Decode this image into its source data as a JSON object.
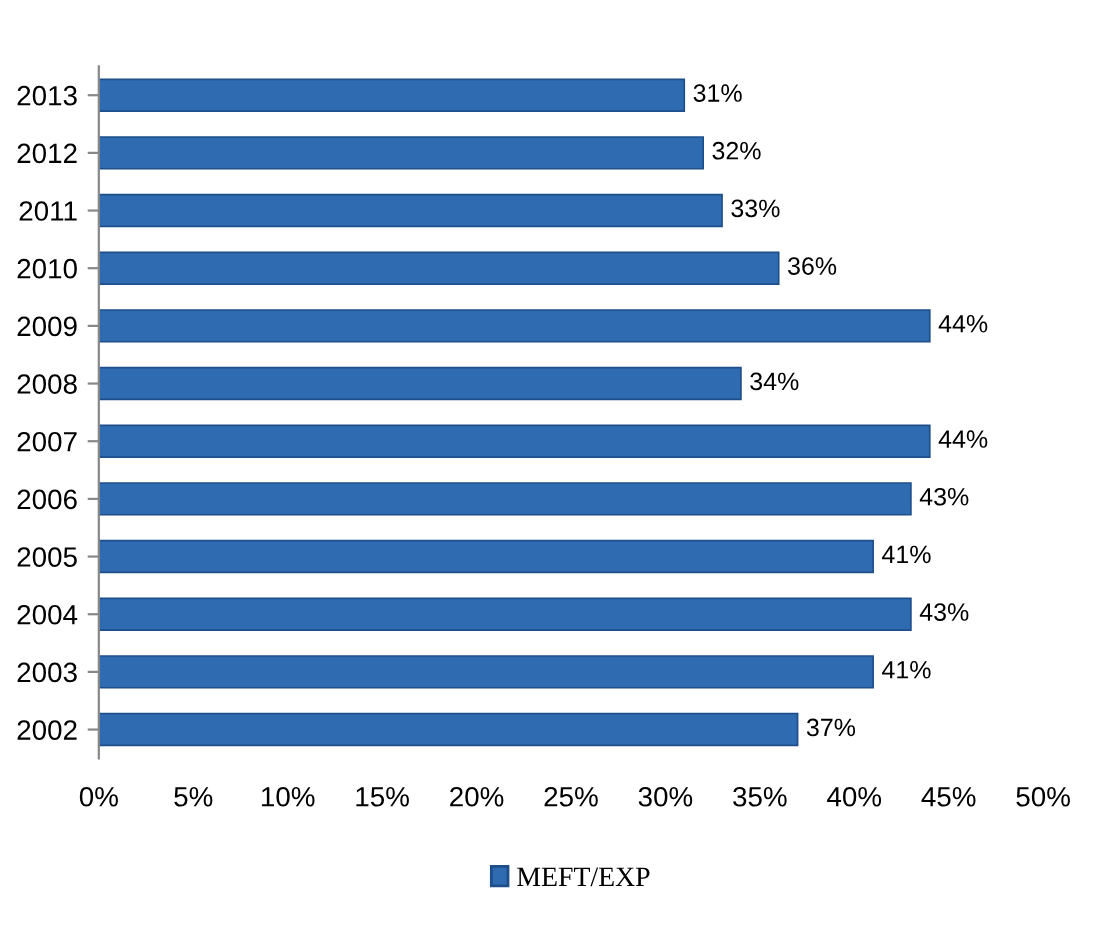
{
  "chart_data": {
    "type": "bar",
    "orientation": "horizontal",
    "categories": [
      "2013",
      "2012",
      "2011",
      "2010",
      "2009",
      "2008",
      "2007",
      "2006",
      "2005",
      "2004",
      "2003",
      "2002"
    ],
    "series": [
      {
        "name": "MEFT/EXP",
        "color": "#2e6bb0",
        "values": [
          31,
          32,
          33,
          36,
          44,
          34,
          44,
          43,
          41,
          43,
          41,
          37
        ],
        "value_labels": [
          "31%",
          "32%",
          "33%",
          "36%",
          "44%",
          "34%",
          "44%",
          "43%",
          "41%",
          "43%",
          "41%",
          "37%"
        ]
      }
    ],
    "xlim": [
      0,
      50
    ],
    "xticks": [
      {
        "value": 0,
        "label": "0%"
      },
      {
        "value": 5,
        "label": "5%"
      },
      {
        "value": 10,
        "label": "10%"
      },
      {
        "value": 15,
        "label": "15%"
      },
      {
        "value": 20,
        "label": "20%"
      },
      {
        "value": 25,
        "label": "25%"
      },
      {
        "value": 30,
        "label": "30%"
      },
      {
        "value": 35,
        "label": "35%"
      },
      {
        "value": 40,
        "label": "40%"
      },
      {
        "value": 45,
        "label": "45%"
      },
      {
        "value": 50,
        "label": "50%"
      }
    ],
    "legend": "bottom",
    "grid": false
  }
}
